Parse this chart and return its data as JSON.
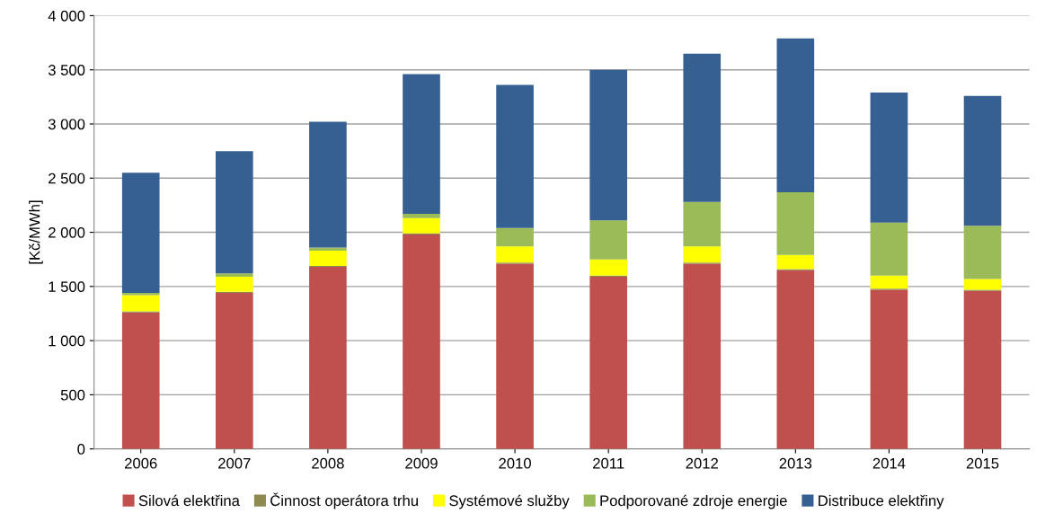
{
  "chart_data": {
    "type": "bar",
    "stacked": true,
    "ylabel": "[Kč/MWh]",
    "categories": [
      "2006",
      "2007",
      "2008",
      "2009",
      "2010",
      "2011",
      "2012",
      "2013",
      "2014",
      "2015"
    ],
    "series": [
      {
        "name": "Silová elektřina",
        "color": "#c0504d",
        "values": [
          1260,
          1440,
          1680,
          1980,
          1710,
          1590,
          1710,
          1650,
          1470,
          1460
        ]
      },
      {
        "name": "Činnost operátora trhu",
        "color": "#8f8a4f",
        "values": [
          10,
          10,
          10,
          10,
          10,
          10,
          10,
          10,
          10,
          10
        ]
      },
      {
        "name": "Systémové služby",
        "color": "#ffff00",
        "values": [
          150,
          140,
          140,
          140,
          150,
          150,
          150,
          130,
          120,
          100
        ]
      },
      {
        "name": "Podporované zdroje energie",
        "color": "#9bbb59",
        "values": [
          20,
          30,
          30,
          40,
          170,
          360,
          410,
          580,
          490,
          490
        ]
      },
      {
        "name": "Distribuce elektřiny",
        "color": "#366092",
        "values": [
          1110,
          1130,
          1160,
          1290,
          1320,
          1390,
          1370,
          1420,
          1200,
          1200
        ]
      }
    ],
    "ylim": [
      0,
      4000
    ],
    "yticks": [
      0,
      500,
      {
        "value": 1000,
        "label": "1 000"
      },
      {
        "value": 1500,
        "label": "1 500"
      },
      {
        "value": 2000,
        "label": "2 000"
      },
      {
        "value": 2500,
        "label": "2 500"
      },
      {
        "value": 3000,
        "label": "3 000"
      },
      {
        "value": 3500,
        "label": "3 500"
      },
      {
        "value": 4000,
        "label": "4 000"
      }
    ],
    "grid": "y",
    "legend": "bottom"
  }
}
